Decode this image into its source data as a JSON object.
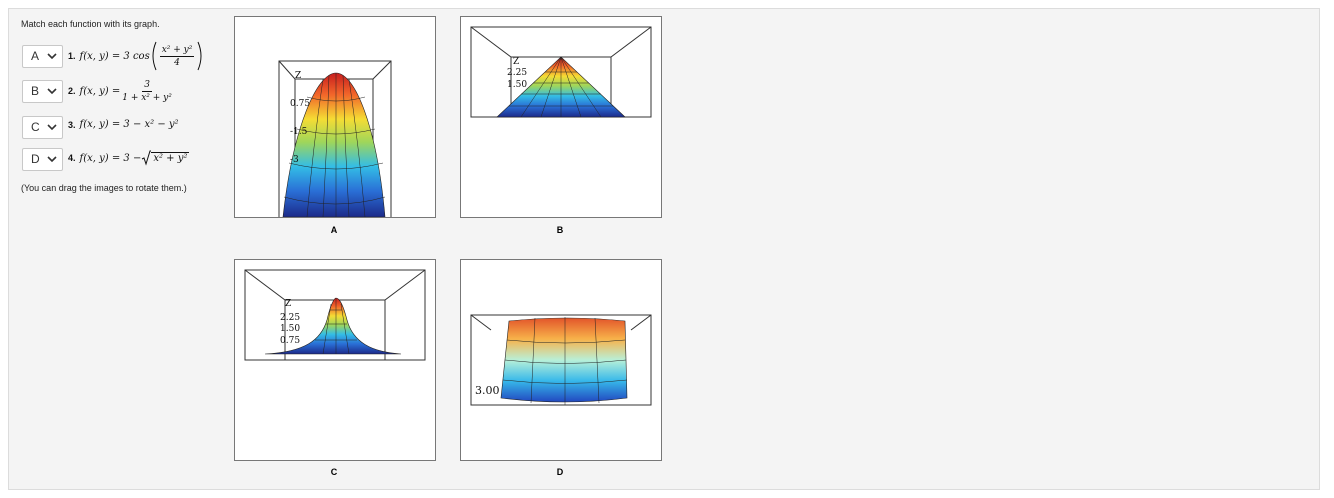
{
  "instructions": "Match each function with its graph.",
  "functions": [
    {
      "selected": "A",
      "number": "1.",
      "formula": "f(x, y) = 3 cos",
      "numerator": "x² + y²",
      "denominator": "4"
    },
    {
      "selected": "B",
      "number": "2.",
      "formula": "f(x, y) =",
      "numerator": "3",
      "denominator": "1 + x² + y²"
    },
    {
      "selected": "C",
      "number": "3.",
      "formula": "f(x, y) = 3 − x² − y²"
    },
    {
      "selected": "D",
      "number": "4.",
      "formula": "f(x, y) = 3 −",
      "radicand": "x² + y²"
    }
  ],
  "note": "(You can drag the images to rotate them.)",
  "graphs": [
    {
      "label": "A",
      "axis_labels": [
        "Z",
        "0.75",
        "-1.5",
        "-3"
      ]
    },
    {
      "label": "B",
      "axis_labels": [
        "Z",
        "2.25",
        "1.50"
      ]
    },
    {
      "label": "C",
      "axis_labels": [
        "Z",
        "2.25",
        "1.50",
        "0.75"
      ]
    },
    {
      "label": "D",
      "axis_labels": [
        "3.00"
      ]
    }
  ]
}
